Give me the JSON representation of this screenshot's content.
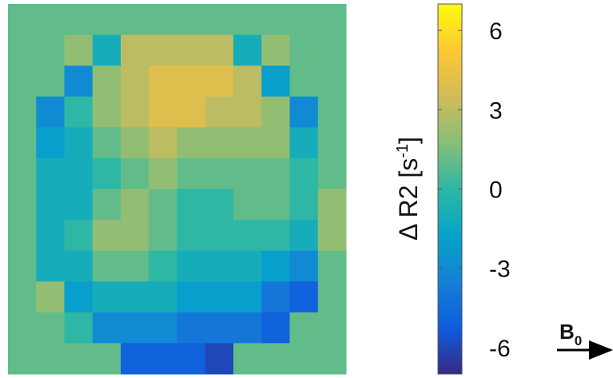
{
  "chart_data": {
    "type": "heatmap",
    "values": [
      [
        1,
        1,
        1,
        1,
        1,
        1,
        1,
        1,
        1,
        1,
        1,
        1
      ],
      [
        1,
        1,
        2,
        -1,
        3,
        3,
        3,
        3,
        -1,
        2,
        1,
        1
      ],
      [
        1,
        1,
        -3,
        2,
        3,
        4,
        4,
        4,
        3,
        -2,
        1,
        1
      ],
      [
        1,
        -3,
        0,
        2,
        3,
        4,
        4,
        3,
        3,
        2,
        -3,
        1
      ],
      [
        1,
        -2,
        -1,
        1,
        2,
        3,
        2,
        2,
        2,
        2,
        -1,
        1
      ],
      [
        1,
        -1,
        -1,
        0,
        1,
        2,
        1,
        1,
        1,
        1,
        0,
        1
      ],
      [
        1,
        -1,
        -1,
        1,
        2,
        1,
        0,
        0,
        1,
        1,
        0,
        2
      ],
      [
        1,
        -1,
        0,
        2,
        2,
        1,
        0,
        0,
        0,
        0,
        -1,
        2
      ],
      [
        1,
        -1,
        -1,
        1,
        1,
        0,
        -1,
        -1,
        -1,
        -2,
        -3,
        1
      ],
      [
        1,
        2,
        -2,
        -1,
        -1,
        -1,
        -2,
        -2,
        -2,
        -4,
        -5,
        1
      ],
      [
        1,
        1,
        0,
        -3,
        -3,
        -3,
        -4,
        -4,
        -4,
        -5,
        1,
        1
      ],
      [
        1,
        1,
        1,
        1,
        -5,
        -5,
        -5,
        -6,
        1,
        1,
        1,
        1
      ]
    ],
    "colormap": "parula",
    "clim": [
      -7,
      7
    ],
    "cticks": [
      6,
      3,
      0,
      -3,
      -6
    ],
    "colorbar_label": [
      "Δ R2 [s",
      "-1",
      "]"
    ],
    "annotation": [
      "B",
      "0"
    ]
  }
}
